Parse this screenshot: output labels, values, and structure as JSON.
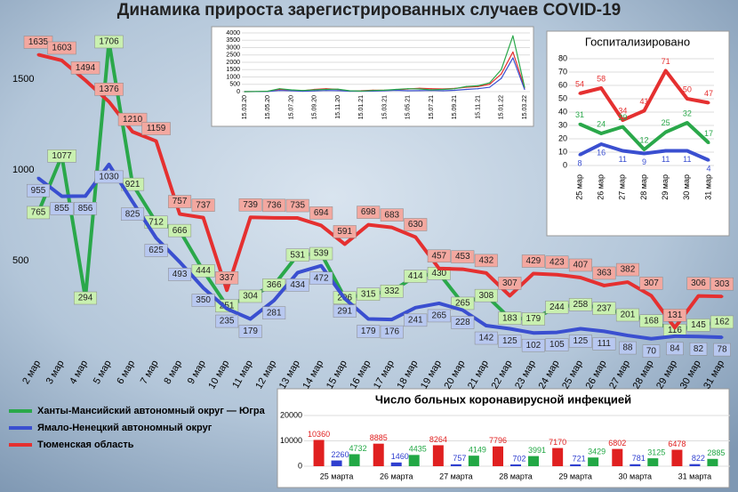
{
  "chart_data": [
    {
      "type": "line",
      "title": "Динамика прироста зарегистрированных случаев COVID-19",
      "categories": [
        "2 мар",
        "3 мар",
        "4 мар",
        "5 мар",
        "6 мар",
        "7 мар",
        "8 мар",
        "9 мар",
        "10 мар",
        "11 мар",
        "12 мар",
        "13 мар",
        "14 мар",
        "15 мар",
        "16 мар",
        "17 мар",
        "18 мар",
        "19 мар",
        "20 мар",
        "21 мар",
        "22 мар",
        "23 мар",
        "24 мар",
        "25 мар",
        "26 мар",
        "27 мар",
        "28 мар",
        "29 мар",
        "30 мар",
        "31 мар"
      ],
      "series": [
        {
          "name": "Ханты-Мансийский автономный округ — Югра",
          "color": "#2aa84a",
          "values": [
            765,
            1077,
            294,
            1706,
            921,
            712,
            666,
            444,
            251,
            304,
            366,
            531,
            539,
            296,
            315,
            332,
            414,
            430,
            265,
            308,
            183,
            179,
            244,
            258,
            237,
            201,
            168,
            116,
            145,
            162
          ]
        },
        {
          "name": "Ямало-Ненецкий автономный округ",
          "color": "#3a4fd0",
          "values": [
            955,
            855,
            856,
            1030,
            825,
            625,
            493,
            350,
            235,
            179,
            281,
            434,
            472,
            291,
            179,
            176,
            241,
            265,
            228,
            142,
            125,
            102,
            105,
            125,
            111,
            88,
            70,
            84,
            82,
            78
          ]
        },
        {
          "name": "Тюменская область",
          "color": "#e53030",
          "values": [
            1635,
            1603,
            1494,
            1376,
            1210,
            1159,
            757,
            737,
            337,
            739,
            736,
            735,
            694,
            591,
            698,
            683,
            630,
            457,
            453,
            432,
            307,
            429,
            423,
            407,
            363,
            382,
            307,
            131,
            306,
            303
          ]
        }
      ],
      "ylim": [
        0,
        1750
      ],
      "yticks": [
        500,
        1000,
        1500
      ],
      "grid": false
    },
    {
      "type": "line",
      "title": "Госпитализировано",
      "categories": [
        "25 мар",
        "26 мар",
        "27 мар",
        "28 мар",
        "29 мар",
        "30 мар",
        "31 мар"
      ],
      "series": [
        {
          "color": "#e53030",
          "values": [
            54,
            58,
            34,
            41,
            71,
            50,
            47
          ]
        },
        {
          "color": "#2aa84a",
          "values": [
            31,
            24,
            29,
            12,
            25,
            32,
            17
          ]
        },
        {
          "color": "#3a4fd0",
          "values": [
            8,
            16,
            11,
            9,
            11,
            11,
            4
          ]
        }
      ],
      "ylim": [
        0,
        80
      ],
      "yticks": [
        0,
        10,
        20,
        30,
        40,
        50,
        60,
        70,
        80
      ],
      "grid": true
    },
    {
      "type": "line",
      "categories": [
        "15.03.20",
        null,
        "15.05.20",
        null,
        "15.07.20",
        null,
        "15.09.20",
        null,
        "15.11.20",
        null,
        "15.01.21",
        null,
        "15.03.21",
        null,
        "15.05.21",
        null,
        "15.07.21",
        null,
        "15.09.21",
        null,
        "15.11.21",
        null,
        "15.01.22",
        null,
        "15.03.22"
      ],
      "series": [
        {
          "color": "#e53030",
          "values": [
            0,
            5,
            20,
            150,
            100,
            60,
            150,
            200,
            150,
            50,
            60,
            100,
            90,
            120,
            180,
            230,
            200,
            180,
            220,
            300,
            350,
            500,
            1200,
            2700,
            250
          ]
        },
        {
          "color": "#3a4fd0",
          "values": [
            0,
            5,
            10,
            80,
            60,
            30,
            50,
            80,
            70,
            30,
            30,
            40,
            60,
            90,
            60,
            70,
            80,
            60,
            90,
            150,
            200,
            300,
            900,
            2300,
            150
          ]
        },
        {
          "color": "#2aa84a",
          "values": [
            0,
            10,
            30,
            200,
            120,
            80,
            120,
            150,
            170,
            60,
            40,
            80,
            100,
            150,
            200,
            180,
            120,
            150,
            200,
            350,
            400,
            600,
            1500,
            3800,
            300
          ]
        }
      ],
      "ylim": [
        0,
        4000
      ],
      "yticks": [
        0,
        500,
        1000,
        1500,
        2000,
        2500,
        3000,
        3500,
        4000
      ],
      "grid": true
    },
    {
      "type": "bar",
      "title": "Число больных коронавирусной  инфекцией",
      "categories": [
        "25 марта",
        "26 марта",
        "27 марта",
        "28 марта",
        "29 марта",
        "30 марта",
        "31 марта"
      ],
      "series": [
        {
          "color": "#e02020",
          "values": [
            10360,
            8885,
            8264,
            7796,
            7170,
            6802,
            6478
          ]
        },
        {
          "color": "#2f3fcf",
          "values": [
            2260,
            1460,
            757,
            702,
            721,
            781,
            822
          ]
        },
        {
          "color": "#22a845",
          "values": [
            4732,
            4435,
            4149,
            3991,
            3429,
            3125,
            2885
          ]
        }
      ],
      "ylim": [
        0,
        20000
      ],
      "yticks": [
        0,
        10000,
        20000
      ],
      "grid": true
    }
  ]
}
